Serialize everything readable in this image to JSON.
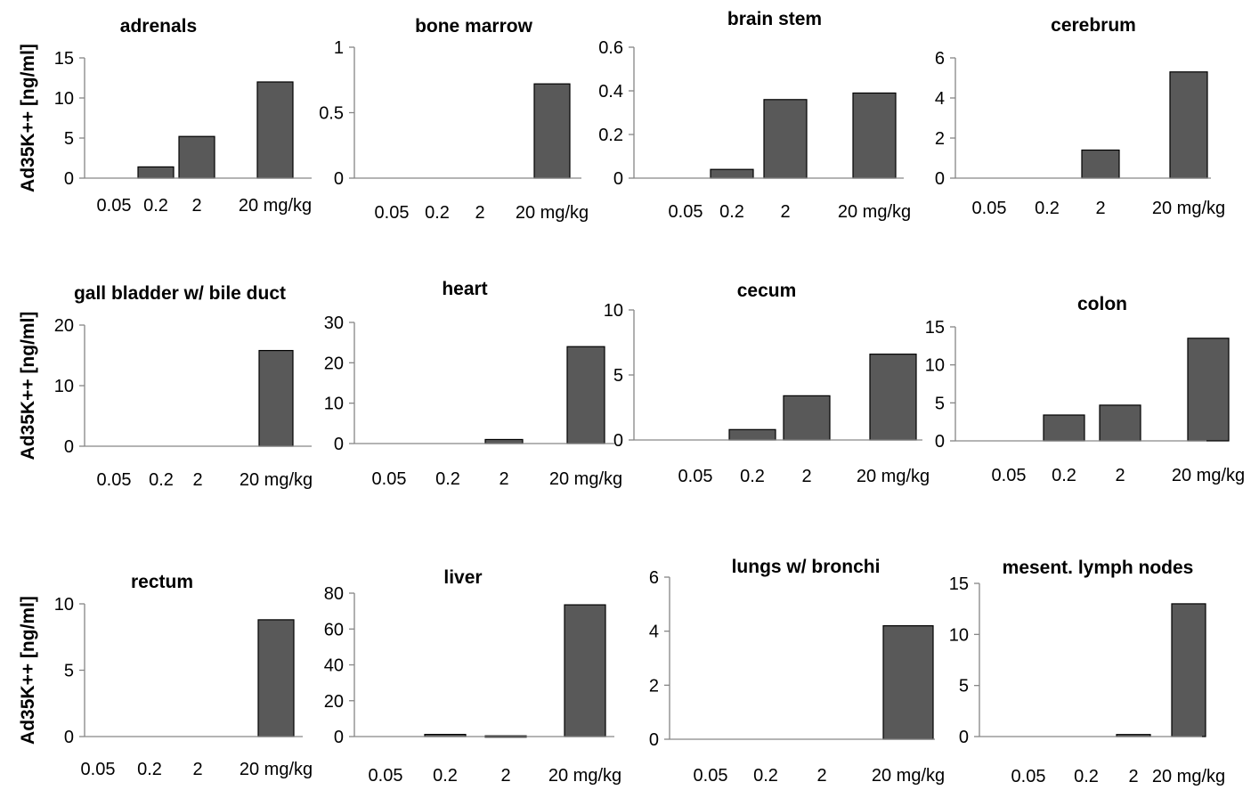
{
  "chart_data": [
    {
      "type": "bar",
      "title": "adrenals",
      "ylabel": "Ad35K++ [ng/ml]",
      "categories": [
        "0.05",
        "0.2",
        "2",
        "20 mg/kg"
      ],
      "values": [
        0,
        1.4,
        5.2,
        12.0
      ],
      "ylim": [
        0,
        15
      ],
      "yticks": [
        "0",
        "5",
        "10",
        "15"
      ]
    },
    {
      "type": "bar",
      "title": "bone marrow",
      "ylabel": "",
      "categories": [
        "0.05",
        "0.2",
        "2",
        "20 mg/kg"
      ],
      "values": [
        0,
        0,
        0,
        0.72
      ],
      "ylim": [
        0,
        1
      ],
      "yticks": [
        "0",
        "0.5",
        "1"
      ]
    },
    {
      "type": "bar",
      "title": "brain stem",
      "ylabel": "",
      "categories": [
        "0.05",
        "0.2",
        "2",
        "20 mg/kg"
      ],
      "values": [
        0,
        0.04,
        0.36,
        0.39
      ],
      "ylim": [
        0,
        0.6
      ],
      "yticks": [
        "0",
        "0.2",
        "0.4",
        "0.6"
      ]
    },
    {
      "type": "bar",
      "title": "cerebrum",
      "ylabel": "",
      "categories": [
        "0.05",
        "0.2",
        "2",
        "20 mg/kg"
      ],
      "values": [
        0,
        0,
        1.4,
        5.3
      ],
      "ylim": [
        0,
        6
      ],
      "yticks": [
        "0",
        "2",
        "4",
        "6"
      ]
    },
    {
      "type": "bar",
      "title": "gall bladder w/ bile duct",
      "ylabel": "Ad35K++ [ng/ml]",
      "categories": [
        "0.05",
        "0.2",
        "2",
        "20 mg/kg"
      ],
      "values": [
        0,
        0,
        0,
        15.8
      ],
      "ylim": [
        0,
        20
      ],
      "yticks": [
        "0",
        "10",
        "20"
      ]
    },
    {
      "type": "bar",
      "title": "heart",
      "ylabel": "",
      "categories": [
        "0.05",
        "0.2",
        "2",
        "20 mg/kg"
      ],
      "values": [
        0,
        0,
        1.0,
        24.0
      ],
      "ylim": [
        0,
        30
      ],
      "yticks": [
        "0",
        "10",
        "20",
        "30"
      ]
    },
    {
      "type": "bar",
      "title": "cecum",
      "ylabel": "",
      "categories": [
        "0.05",
        "0.2",
        "2",
        "20 mg/kg"
      ],
      "values": [
        0,
        0.8,
        3.4,
        6.6
      ],
      "ylim": [
        0,
        10
      ],
      "yticks": [
        "0",
        "5",
        "10"
      ]
    },
    {
      "type": "bar",
      "title": "colon",
      "ylabel": "",
      "categories": [
        "0.05",
        "0.2",
        "2",
        "20 mg/kg"
      ],
      "values": [
        0,
        3.4,
        4.7,
        13.5
      ],
      "ylim": [
        0,
        15
      ],
      "yticks": [
        "0",
        "5",
        "10",
        "15"
      ]
    },
    {
      "type": "bar",
      "title": "rectum",
      "ylabel": "Ad35K++ [ng/ml]",
      "categories": [
        "0.05",
        "0.2",
        "2",
        "20 mg/kg"
      ],
      "values": [
        0,
        0,
        0,
        8.8
      ],
      "ylim": [
        0,
        10
      ],
      "yticks": [
        "0",
        "5",
        "10"
      ]
    },
    {
      "type": "bar",
      "title": "liver",
      "ylabel": "",
      "categories": [
        "0.05",
        "0.2",
        "2",
        "20 mg/kg"
      ],
      "values": [
        0,
        1.2,
        0.4,
        73.5
      ],
      "ylim": [
        0,
        80
      ],
      "yticks": [
        "0",
        "20",
        "40",
        "60",
        "80"
      ]
    },
    {
      "type": "bar",
      "title": "lungs w/ bronchi",
      "ylabel": "",
      "categories": [
        "0.05",
        "0.2",
        "2",
        "20 mg/kg"
      ],
      "values": [
        0,
        0,
        0,
        4.2
      ],
      "ylim": [
        0,
        6
      ],
      "yticks": [
        "0",
        "2",
        "4",
        "6"
      ]
    },
    {
      "type": "bar",
      "title": "mesent.  lymph nodes",
      "ylabel": "",
      "categories": [
        "0.05",
        "0.2",
        "2",
        "20 mg/kg"
      ],
      "values": [
        0,
        0,
        0.2,
        13.0
      ],
      "ylim": [
        0,
        15
      ],
      "yticks": [
        "0",
        "5",
        "10",
        "15"
      ]
    }
  ]
}
